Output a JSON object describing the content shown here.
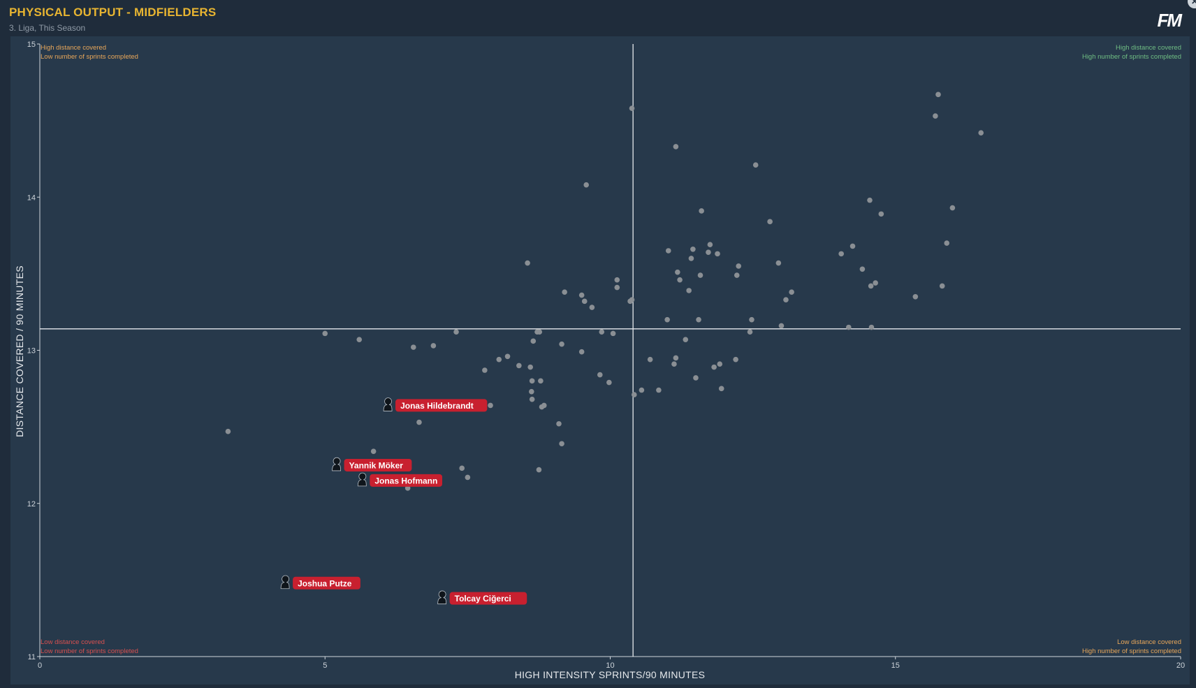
{
  "header": {
    "title": "PHYSICAL OUTPUT - MIDFIELDERS",
    "subtitle": "3. Liga, This Season",
    "logo": "FM",
    "close_icon": "close-icon"
  },
  "quadrants": {
    "top_left": [
      "High distance covered",
      "Low number of sprints completed"
    ],
    "top_right": [
      "High distance covered",
      "High number of sprints completed"
    ],
    "bottom_left": [
      "Low distance covered",
      "Low number of sprints completed"
    ],
    "bottom_right": [
      "Low distance covered",
      "High number of sprints completed"
    ]
  },
  "colors": {
    "background": "#1f2c3b",
    "plot_bg": "#27394b",
    "point": "#8a8f94",
    "highlight_label": "#c8202f",
    "title": "#e8b531",
    "high_quadrant": "#6fbd83",
    "mid_quadrant": "#e8a75a",
    "low_quadrant": "#d8504f"
  },
  "chart_data": {
    "type": "scatter",
    "title": "PHYSICAL OUTPUT - MIDFIELDERS",
    "subtitle": "3. Liga, This Season",
    "xlabel": "HIGH INTENSITY SPRINTS/90 MINUTES",
    "ylabel": "DISTANCE COVERED / 90 MINUTES",
    "xlim": [
      0,
      20
    ],
    "ylim": [
      11,
      15
    ],
    "xticks": [
      0,
      5,
      10,
      15,
      20
    ],
    "yticks": [
      11,
      12,
      13,
      14,
      15
    ],
    "grid": false,
    "reference_lines": {
      "x": 10.4,
      "y": 13.14
    },
    "highlighted": [
      {
        "name": "Jonas Hildebrandt",
        "x": 6.1,
        "y": 12.64
      },
      {
        "name": "Yannik Möker",
        "x": 5.2,
        "y": 12.25
      },
      {
        "name": "Jonas Hofmann",
        "x": 5.65,
        "y": 12.15
      },
      {
        "name": "Joshua Putze",
        "x": 4.3,
        "y": 11.48
      },
      {
        "name": "Tolcay Ciğerci",
        "x": 7.05,
        "y": 11.38
      }
    ],
    "points": [
      [
        3.3,
        12.47
      ],
      [
        5.0,
        13.11
      ],
      [
        5.6,
        13.07
      ],
      [
        5.85,
        12.34
      ],
      [
        6.45,
        12.1
      ],
      [
        6.55,
        13.02
      ],
      [
        6.65,
        12.53
      ],
      [
        6.9,
        13.03
      ],
      [
        7.3,
        13.12
      ],
      [
        7.4,
        12.23
      ],
      [
        7.5,
        12.17
      ],
      [
        7.8,
        12.87
      ],
      [
        7.9,
        12.64
      ],
      [
        8.05,
        12.94
      ],
      [
        8.2,
        12.96
      ],
      [
        8.4,
        12.9
      ],
      [
        8.55,
        13.57
      ],
      [
        8.6,
        12.89
      ],
      [
        8.62,
        12.73
      ],
      [
        8.63,
        12.68
      ],
      [
        8.65,
        13.06
      ],
      [
        8.63,
        12.8
      ],
      [
        8.72,
        13.12
      ],
      [
        8.76,
        13.12
      ],
      [
        8.75,
        12.22
      ],
      [
        8.8,
        12.63
      ],
      [
        8.84,
        12.64
      ],
      [
        8.78,
        12.8
      ],
      [
        9.1,
        12.52
      ],
      [
        9.15,
        12.39
      ],
      [
        9.15,
        13.04
      ],
      [
        9.2,
        13.38
      ],
      [
        9.5,
        13.36
      ],
      [
        9.55,
        13.32
      ],
      [
        9.5,
        12.99
      ],
      [
        9.58,
        14.08
      ],
      [
        9.68,
        13.28
      ],
      [
        9.82,
        12.84
      ],
      [
        9.85,
        13.12
      ],
      [
        9.98,
        12.79
      ],
      [
        10.05,
        13.11
      ],
      [
        10.12,
        13.46
      ],
      [
        10.12,
        13.41
      ],
      [
        10.35,
        13.32
      ],
      [
        10.38,
        13.33
      ],
      [
        10.38,
        14.58
      ],
      [
        10.42,
        12.71
      ],
      [
        10.55,
        12.74
      ],
      [
        10.7,
        12.94
      ],
      [
        10.85,
        12.74
      ],
      [
        11.0,
        13.2
      ],
      [
        11.02,
        13.65
      ],
      [
        11.12,
        12.91
      ],
      [
        11.15,
        12.95
      ],
      [
        11.15,
        14.33
      ],
      [
        11.18,
        13.51
      ],
      [
        11.22,
        13.46
      ],
      [
        11.32,
        13.07
      ],
      [
        11.38,
        13.39
      ],
      [
        11.42,
        13.6
      ],
      [
        11.45,
        13.66
      ],
      [
        11.5,
        12.82
      ],
      [
        11.55,
        13.2
      ],
      [
        11.58,
        13.49
      ],
      [
        11.6,
        13.91
      ],
      [
        11.72,
        13.64
      ],
      [
        11.75,
        13.69
      ],
      [
        11.82,
        12.89
      ],
      [
        11.88,
        13.63
      ],
      [
        11.92,
        12.91
      ],
      [
        11.95,
        12.75
      ],
      [
        12.2,
        12.94
      ],
      [
        12.22,
        13.49
      ],
      [
        12.25,
        13.55
      ],
      [
        12.45,
        13.12
      ],
      [
        12.48,
        13.2
      ],
      [
        12.55,
        14.21
      ],
      [
        12.8,
        13.84
      ],
      [
        12.95,
        13.57
      ],
      [
        13.0,
        13.16
      ],
      [
        13.08,
        13.33
      ],
      [
        13.18,
        13.38
      ],
      [
        14.05,
        13.63
      ],
      [
        14.18,
        13.15
      ],
      [
        14.25,
        13.68
      ],
      [
        14.42,
        13.53
      ],
      [
        14.55,
        13.98
      ],
      [
        14.57,
        13.42
      ],
      [
        14.58,
        13.15
      ],
      [
        14.65,
        13.44
      ],
      [
        14.75,
        13.89
      ],
      [
        15.35,
        13.35
      ],
      [
        15.7,
        14.53
      ],
      [
        15.75,
        14.67
      ],
      [
        15.82,
        13.42
      ],
      [
        15.9,
        13.7
      ],
      [
        16.0,
        13.93
      ],
      [
        16.5,
        14.42
      ]
    ]
  }
}
